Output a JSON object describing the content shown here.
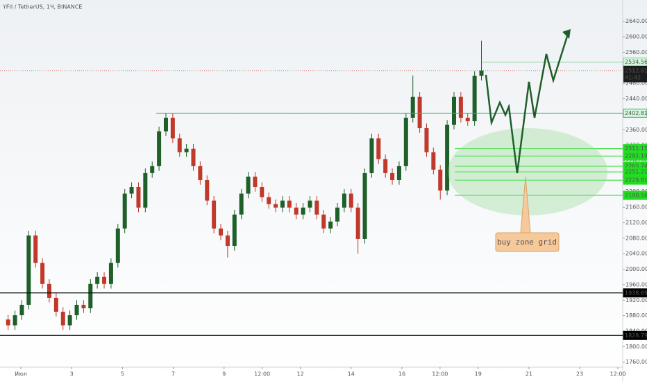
{
  "chart_data": {
    "type": "candlestick",
    "title": "YFII / TetherUS, 1Ч, BINANCE",
    "annotation": "buy zone grid",
    "up_color": "#1f5f2a",
    "down_color": "#c0392b",
    "x": [
      0.5,
      0.77,
      1.04,
      1.31,
      1.58,
      1.85,
      2.12,
      2.39,
      2.66,
      2.93,
      3.2,
      3.47,
      3.74,
      4.01,
      4.28,
      4.55,
      4.82,
      5.09,
      5.36,
      5.63,
      5.9,
      6.17,
      6.44,
      6.71,
      6.98,
      7.25,
      7.52,
      7.79,
      8.06,
      8.33,
      8.6,
      8.87,
      9.14,
      9.41,
      9.68,
      9.95,
      10.22,
      10.49,
      10.76,
      11.03,
      11.3,
      11.57,
      11.84,
      12.11,
      12.38,
      12.65,
      12.92,
      13.19,
      13.46,
      13.73,
      14.0,
      14.27,
      14.54,
      14.81,
      15.08,
      15.35,
      15.62,
      15.89,
      16.16,
      16.43,
      16.7,
      16.97,
      17.24,
      17.51,
      17.78,
      18.05,
      18.32,
      18.59,
      18.86,
      19.13
    ],
    "open": [
      1870,
      1855,
      1881,
      1908,
      2087,
      2016,
      1962,
      1926,
      1890,
      1855,
      1881,
      1908,
      1899,
      1962,
      1980,
      1962,
      2016,
      2105,
      2195,
      2212,
      2159,
      2248,
      2266,
      2356,
      2391,
      2338,
      2302,
      2311,
      2266,
      2230,
      2177,
      2105,
      2087,
      2060,
      2141,
      2195,
      2239,
      2212,
      2186,
      2168,
      2159,
      2177,
      2159,
      2141,
      2159,
      2177,
      2141,
      2105,
      2123,
      2159,
      2195,
      2159,
      2078,
      2248,
      2338,
      2284,
      2248,
      2230,
      2266,
      2391,
      2445,
      2364,
      2302,
      2257,
      2203,
      2373,
      2445,
      2391,
      2382,
      2499
    ],
    "high": [
      1882,
      1893,
      1920,
      2099,
      2099,
      2028,
      1974,
      1938,
      1902,
      1893,
      1920,
      1920,
      1974,
      1992,
      1992,
      2028,
      2117,
      2207,
      2224,
      2224,
      2260,
      2278,
      2368,
      2403,
      2403,
      2350,
      2323,
      2323,
      2278,
      2242,
      2189,
      2117,
      2099,
      2153,
      2207,
      2251,
      2251,
      2224,
      2198,
      2180,
      2189,
      2189,
      2171,
      2171,
      2189,
      2189,
      2153,
      2135,
      2171,
      2207,
      2207,
      2171,
      2260,
      2350,
      2350,
      2296,
      2260,
      2278,
      2403,
      2500,
      2457,
      2376,
      2314,
      2269,
      2385,
      2457,
      2457,
      2403,
      2511,
      2590
    ],
    "low": [
      1843,
      1843,
      1869,
      1896,
      2004,
      1950,
      1914,
      1878,
      1843,
      1843,
      1869,
      1887,
      1887,
      1950,
      1950,
      1950,
      2004,
      2093,
      2183,
      2147,
      2147,
      2236,
      2254,
      2344,
      2326,
      2290,
      2290,
      2254,
      2218,
      2165,
      2093,
      2075,
      2030,
      2048,
      2129,
      2183,
      2200,
      2174,
      2156,
      2147,
      2147,
      2147,
      2129,
      2129,
      2147,
      2129,
      2093,
      2093,
      2111,
      2147,
      2147,
      2040,
      2066,
      2236,
      2272,
      2236,
      2218,
      2218,
      2254,
      2379,
      2352,
      2290,
      2245,
      2180,
      2191,
      2361,
      2379,
      2370,
      2370,
      2487
    ],
    "close": [
      1855,
      1881,
      1908,
      2087,
      2016,
      1962,
      1926,
      1890,
      1855,
      1881,
      1908,
      1899,
      1962,
      1980,
      1962,
      2016,
      2105,
      2195,
      2212,
      2159,
      2248,
      2266,
      2356,
      2391,
      2338,
      2302,
      2311,
      2266,
      2230,
      2177,
      2105,
      2087,
      2060,
      2141,
      2195,
      2239,
      2212,
      2186,
      2168,
      2159,
      2177,
      2159,
      2141,
      2159,
      2177,
      2141,
      2105,
      2123,
      2159,
      2195,
      2159,
      2078,
      2248,
      2338,
      2284,
      2248,
      2230,
      2266,
      2391,
      2445,
      2364,
      2302,
      2257,
      2203,
      2373,
      2445,
      2391,
      2382,
      2499,
      2513
    ],
    "xlim": [
      0.18,
      24.69
    ],
    "xticks": [
      {
        "value": 1,
        "label": "Июл"
      },
      3,
      5,
      7,
      9,
      {
        "value": 10.5,
        "label": "12:00"
      },
      12,
      14,
      16,
      {
        "value": 17.5,
        "label": "12:00"
      },
      19,
      21,
      23,
      {
        "value": 24.5,
        "label": "12:00"
      }
    ],
    "ylim": [
      1747,
      2695
    ],
    "yticks": [
      {
        "value": 1760,
        "label": "1760.00"
      },
      {
        "value": 1800,
        "label": "1800.00"
      },
      {
        "value": 1840,
        "label": "1840.00"
      },
      {
        "value": 1880,
        "label": "1880.00"
      },
      {
        "value": 1920,
        "label": "1920.00"
      },
      {
        "value": 1960,
        "label": "1960.00"
      },
      {
        "value": 2000,
        "label": "2000.00"
      },
      {
        "value": 2040,
        "label": "2040.00"
      },
      {
        "value": 2080,
        "label": "2080.00"
      },
      {
        "value": 2120,
        "label": "2120.00"
      },
      {
        "value": 2160,
        "label": "2160.00"
      },
      {
        "value": 2200,
        "label": "2200.00"
      },
      {
        "value": 2240,
        "label": "2240.00"
      },
      {
        "value": 2280,
        "label": "2280.00"
      },
      {
        "value": 2320,
        "label": "2320.00"
      },
      {
        "value": 2360,
        "label": "2360.00"
      },
      {
        "value": 2400,
        "label": "2400.00"
      },
      {
        "value": 2440,
        "label": "2440.00"
      },
      {
        "value": 2480,
        "label": "2480.00"
      },
      {
        "value": 2520,
        "label": "2520.00"
      },
      {
        "value": 2560,
        "label": "2560.00"
      },
      {
        "value": 2600,
        "label": "2600.00"
      },
      {
        "value": 2640,
        "label": "2640.00"
      }
    ],
    "levels": [
      {
        "value": 2534.56,
        "from": 19.17,
        "color": "#8fd19e"
      },
      {
        "value": 2402.81,
        "from": 6.33,
        "color": "#3cb371"
      },
      {
        "value": 2311.15,
        "from": 18.08,
        "color": "#22dd22"
      },
      {
        "value": 2292.19,
        "from": 18.08,
        "color": "#22dd22"
      },
      {
        "value": 2265.74,
        "from": 18.08,
        "color": "#22dd22"
      },
      {
        "value": 2251.21,
        "from": 18.08,
        "color": "#22dd22"
      },
      {
        "value": 2229.81,
        "from": 18.08,
        "color": "#22dd22"
      },
      {
        "value": 2190.56,
        "from": 18.08,
        "color": "#22dd22"
      },
      {
        "value": 1938.69,
        "from": 0.18,
        "color": "#000000"
      },
      {
        "value": 1828.79,
        "from": 0.18,
        "color": "#000000"
      }
    ],
    "last_price": 2512.81,
    "countdown": "41:42"
  }
}
